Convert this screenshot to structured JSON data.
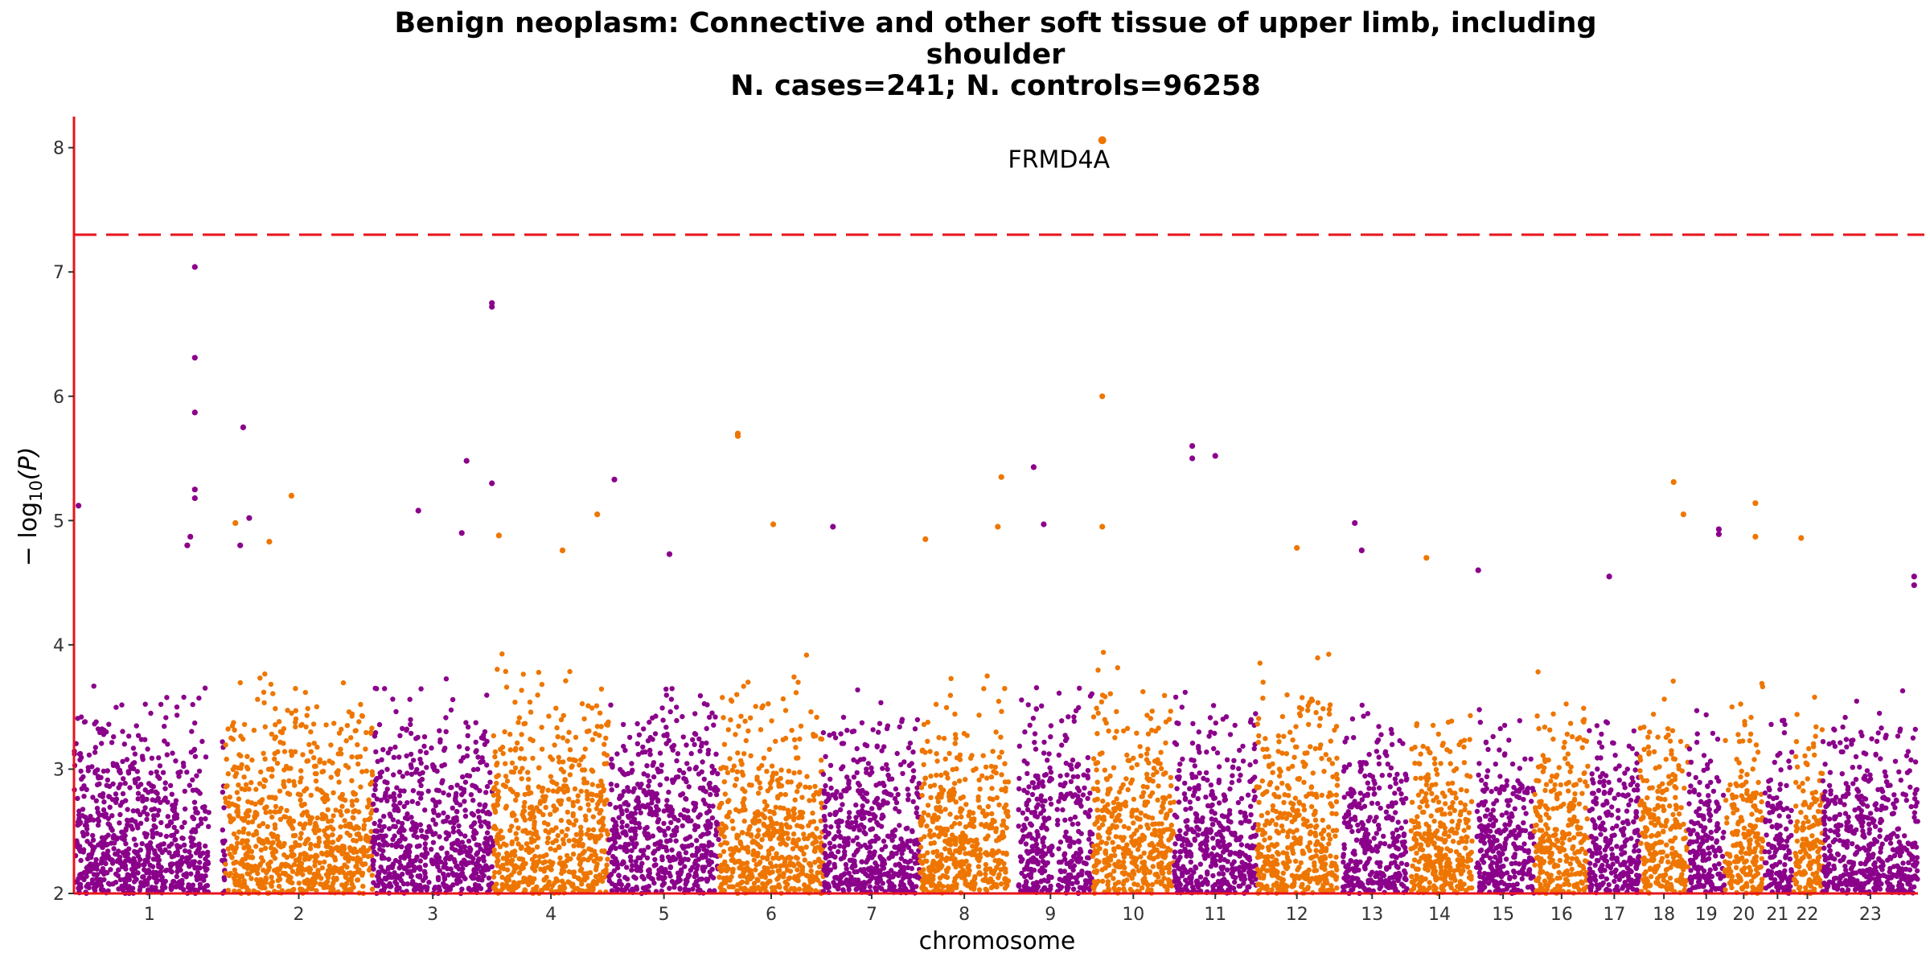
{
  "chart_data": {
    "type": "scatter",
    "title_lines": [
      "Benign neoplasm: Connective and other soft tissue of upper limb, including",
      "shoulder",
      "N. cases=241; N. controls=96258"
    ],
    "xlabel": "chromosome",
    "ylabel": "− log10(P)",
    "ylabel_parts": {
      "prefix": "− log",
      "sub": "10",
      "suffix": "(P)"
    },
    "ylim": [
      2,
      8.25
    ],
    "y_ticks": [
      2,
      3,
      4,
      5,
      6,
      7,
      8
    ],
    "significance_threshold": 7.3,
    "colors": {
      "odd": "#8B008B",
      "even": "#EE7600",
      "threshold": "#E8141B",
      "axis": "#E8141B"
    },
    "chromosomes": [
      {
        "label": "1",
        "rel_len": 248,
        "max_bg": 3.9
      },
      {
        "label": "2",
        "rel_len": 242,
        "max_bg": 4.1
      },
      {
        "label": "3",
        "rel_len": 198,
        "max_bg": 3.9
      },
      {
        "label": "4",
        "rel_len": 190,
        "max_bg": 4.1
      },
      {
        "label": "5",
        "rel_len": 181,
        "max_bg": 4.0
      },
      {
        "label": "6",
        "rel_len": 171,
        "max_bg": 4.0
      },
      {
        "label": "7",
        "rel_len": 159,
        "max_bg": 3.8
      },
      {
        "label": "8",
        "rel_len": 145,
        "max_bg": 3.9
      },
      {
        "label": "9",
        "rel_len": 138,
        "max_bg": 3.9
      },
      {
        "label": "10",
        "rel_len": 134,
        "max_bg": 4.0
      },
      {
        "label": "11",
        "rel_len": 135,
        "max_bg": 3.8
      },
      {
        "label": "12",
        "rel_len": 133,
        "max_bg": 4.0
      },
      {
        "label": "13",
        "rel_len": 114,
        "max_bg": 3.7
      },
      {
        "label": "14",
        "rel_len": 107,
        "max_bg": 3.8
      },
      {
        "label": "15",
        "rel_len": 102,
        "max_bg": 3.7
      },
      {
        "label": "16",
        "rel_len": 90,
        "max_bg": 3.9
      },
      {
        "label": "17",
        "rel_len": 83,
        "max_bg": 3.7
      },
      {
        "label": "18",
        "rel_len": 80,
        "max_bg": 3.8
      },
      {
        "label": "19",
        "rel_len": 59,
        "max_bg": 3.7
      },
      {
        "label": "20",
        "rel_len": 64,
        "max_bg": 3.9
      },
      {
        "label": "21",
        "rel_len": 47,
        "max_bg": 3.6
      },
      {
        "label": "22",
        "rel_len": 51,
        "max_bg": 3.8
      },
      {
        "label": "23",
        "rel_len": 156,
        "max_bg": 3.7
      }
    ],
    "gaps": [
      {
        "chrom": 0,
        "start": 0.9,
        "end": 0.98
      },
      {
        "chrom": 8,
        "start": 0.0,
        "end": 0.12
      },
      {
        "chrom": 8,
        "start": 0.52,
        "end": 0.58
      },
      {
        "chrom": 12,
        "start": 0.0,
        "end": 0.08
      },
      {
        "chrom": 13,
        "start": 0.0,
        "end": 0.06
      },
      {
        "chrom": 14,
        "start": 0.0,
        "end": 0.07
      },
      {
        "chrom": 20,
        "start": 0.0,
        "end": 0.06
      },
      {
        "chrom": 21,
        "start": 0.0,
        "end": 0.06
      }
    ],
    "peaks": [
      {
        "chrom": 0,
        "pos": 0.03,
        "y": 5.12
      },
      {
        "chrom": 0,
        "pos": 0.8,
        "y": 7.04
      },
      {
        "chrom": 0,
        "pos": 0.8,
        "y": 6.31
      },
      {
        "chrom": 0,
        "pos": 0.8,
        "y": 5.87
      },
      {
        "chrom": 0,
        "pos": 0.8,
        "y": 5.25
      },
      {
        "chrom": 0,
        "pos": 0.8,
        "y": 5.18
      },
      {
        "chrom": 0,
        "pos": 0.77,
        "y": 4.87
      },
      {
        "chrom": 0,
        "pos": 0.75,
        "y": 4.8
      },
      {
        "chrom": 1,
        "pos": 0.07,
        "y": 4.98
      },
      {
        "chrom": 1,
        "pos": 0.45,
        "y": 5.2
      },
      {
        "chrom": 1,
        "pos": 0.3,
        "y": 4.83
      },
      {
        "chrom": 0,
        "pos": 1.12,
        "y": 5.75
      },
      {
        "chrom": 0,
        "pos": 1.1,
        "y": 4.8
      },
      {
        "chrom": 0,
        "pos": 1.16,
        "y": 5.02
      },
      {
        "chrom": 2,
        "pos": 0.38,
        "y": 5.08
      },
      {
        "chrom": 2,
        "pos": 0.78,
        "y": 5.48
      },
      {
        "chrom": 2,
        "pos": 0.74,
        "y": 4.9
      },
      {
        "chrom": 2,
        "pos": 0.99,
        "y": 6.75
      },
      {
        "chrom": 2,
        "pos": 0.99,
        "y": 6.72
      },
      {
        "chrom": 2,
        "pos": 0.99,
        "y": 5.3
      },
      {
        "chrom": 3,
        "pos": 0.05,
        "y": 4.88
      },
      {
        "chrom": 3,
        "pos": 0.6,
        "y": 4.76
      },
      {
        "chrom": 3,
        "pos": 0.9,
        "y": 5.05
      },
      {
        "chrom": 4,
        "pos": 0.05,
        "y": 5.33
      },
      {
        "chrom": 4,
        "pos": 0.55,
        "y": 4.73
      },
      {
        "chrom": 5,
        "pos": 0.18,
        "y": 5.7
      },
      {
        "chrom": 5,
        "pos": 0.18,
        "y": 5.68
      },
      {
        "chrom": 5,
        "pos": 0.52,
        "y": 4.97
      },
      {
        "chrom": 6,
        "pos": 0.1,
        "y": 4.95
      },
      {
        "chrom": 7,
        "pos": 0.06,
        "y": 4.85
      },
      {
        "chrom": 7,
        "pos": 0.92,
        "y": 5.35
      },
      {
        "chrom": 7,
        "pos": 0.88,
        "y": 4.95
      },
      {
        "chrom": 8,
        "pos": 0.3,
        "y": 5.43
      },
      {
        "chrom": 8,
        "pos": 0.42,
        "y": 4.97
      },
      {
        "chrom": 9,
        "pos": 0.12,
        "y": 8.06,
        "label": "FRMD4A"
      },
      {
        "chrom": 9,
        "pos": 0.12,
        "y": 6.0
      },
      {
        "chrom": 9,
        "pos": 0.12,
        "y": 4.95
      },
      {
        "chrom": 10,
        "pos": 0.22,
        "y": 5.6
      },
      {
        "chrom": 10,
        "pos": 0.22,
        "y": 5.5
      },
      {
        "chrom": 10,
        "pos": 0.5,
        "y": 5.52
      },
      {
        "chrom": 11,
        "pos": 0.5,
        "y": 4.78
      },
      {
        "chrom": 12,
        "pos": 0.25,
        "y": 4.98
      },
      {
        "chrom": 12,
        "pos": 0.35,
        "y": 4.76
      },
      {
        "chrom": 13,
        "pos": 0.3,
        "y": 4.7
      },
      {
        "chrom": 14,
        "pos": 0.1,
        "y": 4.6
      },
      {
        "chrom": 16,
        "pos": 0.4,
        "y": 4.55
      },
      {
        "chrom": 17,
        "pos": 0.7,
        "y": 5.31
      },
      {
        "chrom": 17,
        "pos": 0.9,
        "y": 5.05
      },
      {
        "chrom": 18,
        "pos": 0.85,
        "y": 4.93
      },
      {
        "chrom": 18,
        "pos": 0.85,
        "y": 4.89
      },
      {
        "chrom": 19,
        "pos": 0.8,
        "y": 5.14
      },
      {
        "chrom": 19,
        "pos": 0.8,
        "y": 4.87
      },
      {
        "chrom": 21,
        "pos": 0.3,
        "y": 4.86
      },
      {
        "chrom": 22,
        "pos": 0.96,
        "y": 4.55
      },
      {
        "chrom": 22,
        "pos": 0.96,
        "y": 4.48
      }
    ]
  }
}
